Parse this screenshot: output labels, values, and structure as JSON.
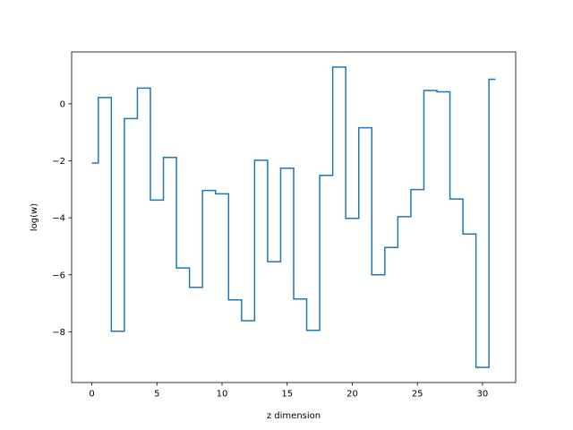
{
  "chart_data": {
    "type": "line",
    "drawstyle": "steps-mid",
    "title": "",
    "xlabel": "z dimension",
    "ylabel": "log(w)",
    "xlim": [
      -1.55,
      32.55
    ],
    "ylim": [
      -9.78,
      1.82
    ],
    "grid": false,
    "x_ticks": [
      0,
      5,
      10,
      15,
      20,
      25,
      30
    ],
    "y_ticks": [
      -8,
      -6,
      -4,
      -2,
      0
    ],
    "line_color": "#1f77b4",
    "series": [
      {
        "x": [
          0,
          1,
          2,
          3,
          4,
          5,
          6,
          7,
          8,
          9,
          10,
          11,
          12,
          13,
          14,
          15,
          16,
          17,
          18,
          19,
          20,
          21,
          22,
          23,
          24,
          25,
          26,
          27,
          28,
          29,
          30,
          31
        ],
        "values": [
          -2.08,
          0.22,
          -7.98,
          -0.52,
          0.55,
          -3.38,
          -1.88,
          -5.76,
          -6.44,
          -3.04,
          -3.16,
          -6.88,
          -7.61,
          -1.98,
          -5.54,
          -2.26,
          -6.85,
          -7.95,
          -2.51,
          1.29,
          -4.02,
          -0.84,
          -6.0,
          -5.04,
          -3.96,
          -3.01,
          0.47,
          0.42,
          -3.34,
          -4.57,
          -9.25,
          0.86
        ]
      }
    ]
  }
}
